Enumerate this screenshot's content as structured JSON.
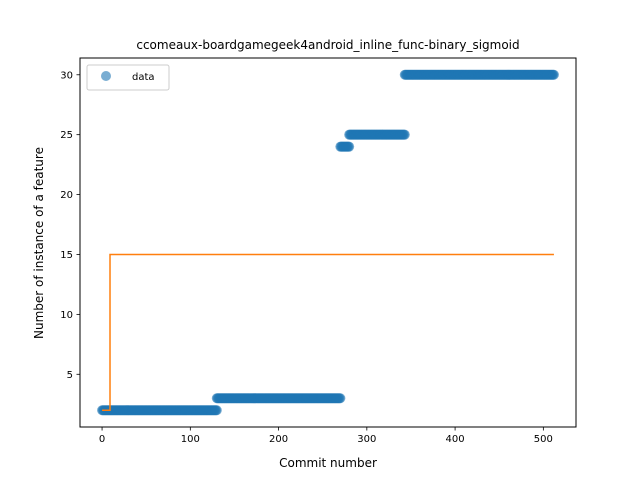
{
  "chart_data": {
    "type": "scatter",
    "title": "ccomeaux-boardgamegeek4android_inline_func-binary_sigmoid",
    "xlabel": "Commit number",
    "ylabel": "Number of instance of a feature",
    "xlim": [
      -25,
      537
    ],
    "ylim": [
      0.6,
      31.4
    ],
    "xticks": [
      0,
      100,
      200,
      300,
      400,
      500
    ],
    "yticks": [
      5,
      10,
      15,
      20,
      25,
      30
    ],
    "grid": false,
    "legend": {
      "placement": "upper-left",
      "entries": [
        "data"
      ]
    },
    "series": [
      {
        "name": "data",
        "kind": "points",
        "color": "#1f77b4",
        "segments": [
          {
            "x_start": 0,
            "x_end": 130,
            "y": 2
          },
          {
            "x_start": 130,
            "x_end": 270,
            "y": 3
          },
          {
            "x_start": 270,
            "x_end": 280,
            "y": 24
          },
          {
            "x_start": 280,
            "x_end": 343,
            "y": 25
          },
          {
            "x_start": 343,
            "x_end": 512,
            "y": 30
          }
        ]
      },
      {
        "kind": "line",
        "color": "#ff7f0e",
        "x": [
          0,
          9,
          9,
          512
        ],
        "y": [
          2,
          2,
          15,
          15
        ]
      }
    ]
  }
}
